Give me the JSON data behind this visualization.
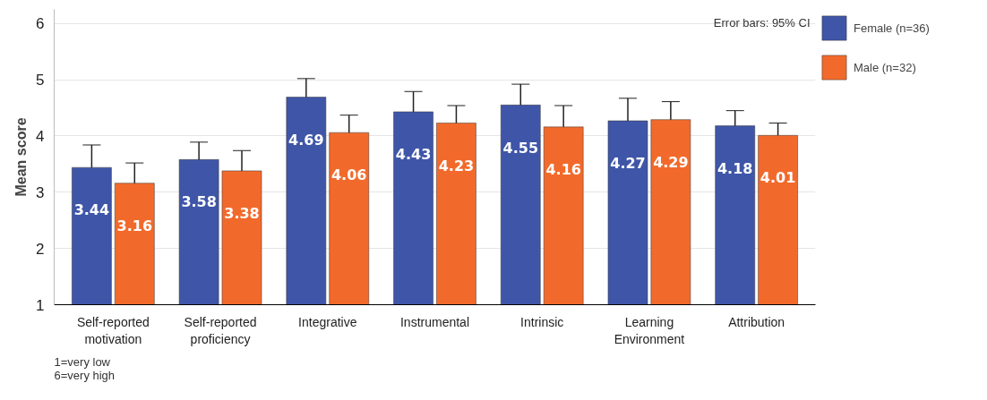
{
  "chart_data": {
    "type": "bar",
    "ylabel": "Mean score",
    "categories": [
      "Self-reported\nmotivation",
      "Self-reported\nproficiency",
      "Integrative",
      "Instrumental",
      "Intrinsic",
      "Learning\nEnvironment",
      "Attribution"
    ],
    "series": [
      {
        "name": "Female (n=36)",
        "color": "#3f56a8",
        "values": [
          3.44,
          3.58,
          4.69,
          4.43,
          4.55,
          4.27,
          4.18
        ],
        "errors": [
          0.4,
          0.31,
          0.33,
          0.36,
          0.37,
          0.4,
          0.27
        ]
      },
      {
        "name": "Male (n=32)",
        "color": "#f26a2b",
        "values": [
          3.16,
          3.38,
          4.06,
          4.23,
          4.16,
          4.29,
          4.01
        ],
        "errors": [
          0.36,
          0.36,
          0.31,
          0.31,
          0.38,
          0.32,
          0.22
        ]
      }
    ],
    "ylim": [
      1,
      6.25
    ],
    "yticks": [
      1,
      2,
      3,
      4,
      5,
      6
    ],
    "grid": "y",
    "legend": "top right",
    "data_labels": true,
    "annotations": [
      "Error bars: 95% CI",
      "1=very low\n6=very high"
    ]
  }
}
